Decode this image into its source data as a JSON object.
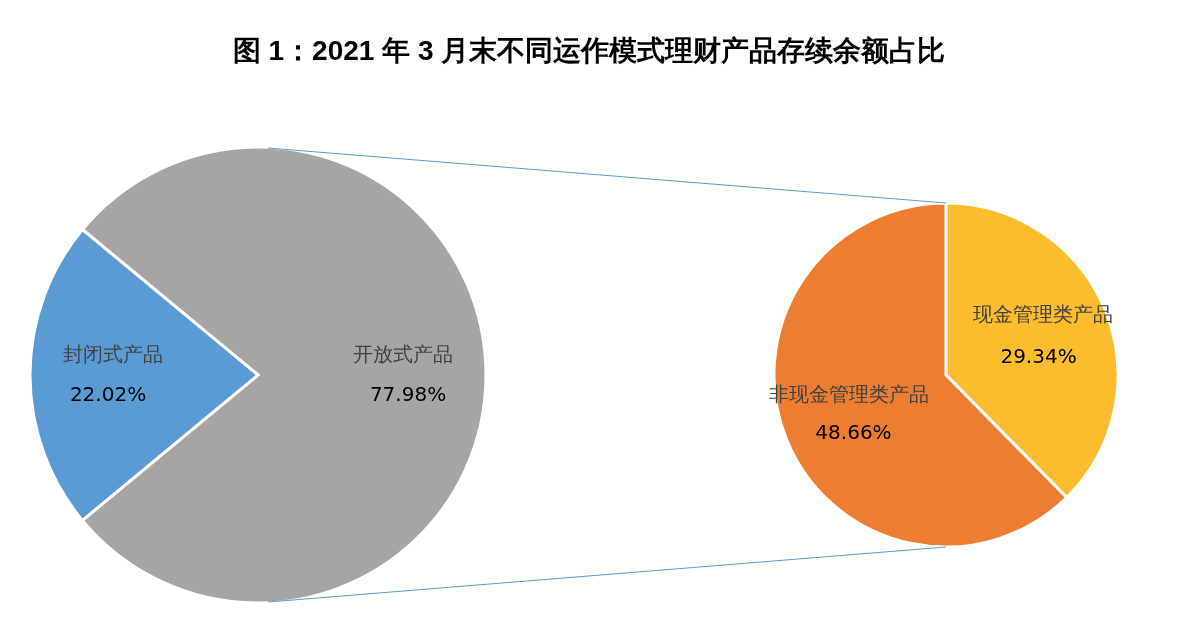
{
  "chart_data": [
    {
      "type": "pie",
      "title": "图 1：2021 年 3 月末不同运作模式理财产品存续余额占比",
      "categories": [
        "开放式产品",
        "封闭式产品"
      ],
      "values": [
        77.98,
        22.02
      ],
      "colors": [
        "#a5a5a5",
        "#5b9bd5"
      ],
      "value_labels": [
        "77.98%",
        "22.02%"
      ]
    },
    {
      "type": "pie",
      "categories": [
        "现金管理类产品",
        "非现金管理类产品"
      ],
      "values": [
        29.34,
        48.66
      ],
      "colors": [
        "#fbbc2d",
        "#ed7d31"
      ],
      "value_labels": [
        "29.34%",
        "48.66%"
      ]
    }
  ]
}
